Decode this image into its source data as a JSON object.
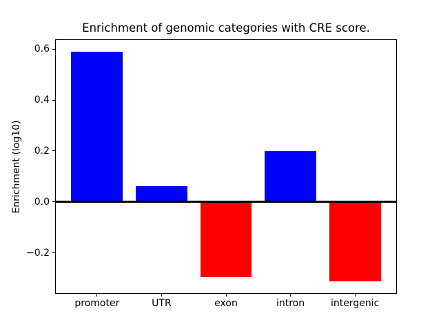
{
  "chart_data": {
    "type": "bar",
    "title": "Enrichment of genomic categories with CRE score.",
    "xlabel": "",
    "ylabel": "Enrichment (log10)",
    "categories": [
      "promoter",
      "UTR",
      "exon",
      "intron",
      "intergenic"
    ],
    "values": [
      0.59,
      0.063,
      -0.297,
      0.201,
      -0.313
    ],
    "bar_colors": [
      "#0000ff",
      "#0000ff",
      "#ff0000",
      "#0000ff",
      "#ff0000"
    ],
    "positive_color": "#0000ff",
    "negative_color": "#ff0000",
    "bar_width": 0.8,
    "xlim": [
      -0.64,
      4.64
    ],
    "ylim": [
      -0.358,
      0.636
    ],
    "yticks": [
      -0.2,
      0.0,
      0.2,
      0.4,
      0.6
    ],
    "ytick_labels": [
      "−0.2",
      "0.0",
      "0.2",
      "0.4",
      "0.6"
    ],
    "zero_line": true,
    "zero_line_color": "#000000",
    "grid": false,
    "legend": null,
    "background_color": "#ffffff"
  }
}
